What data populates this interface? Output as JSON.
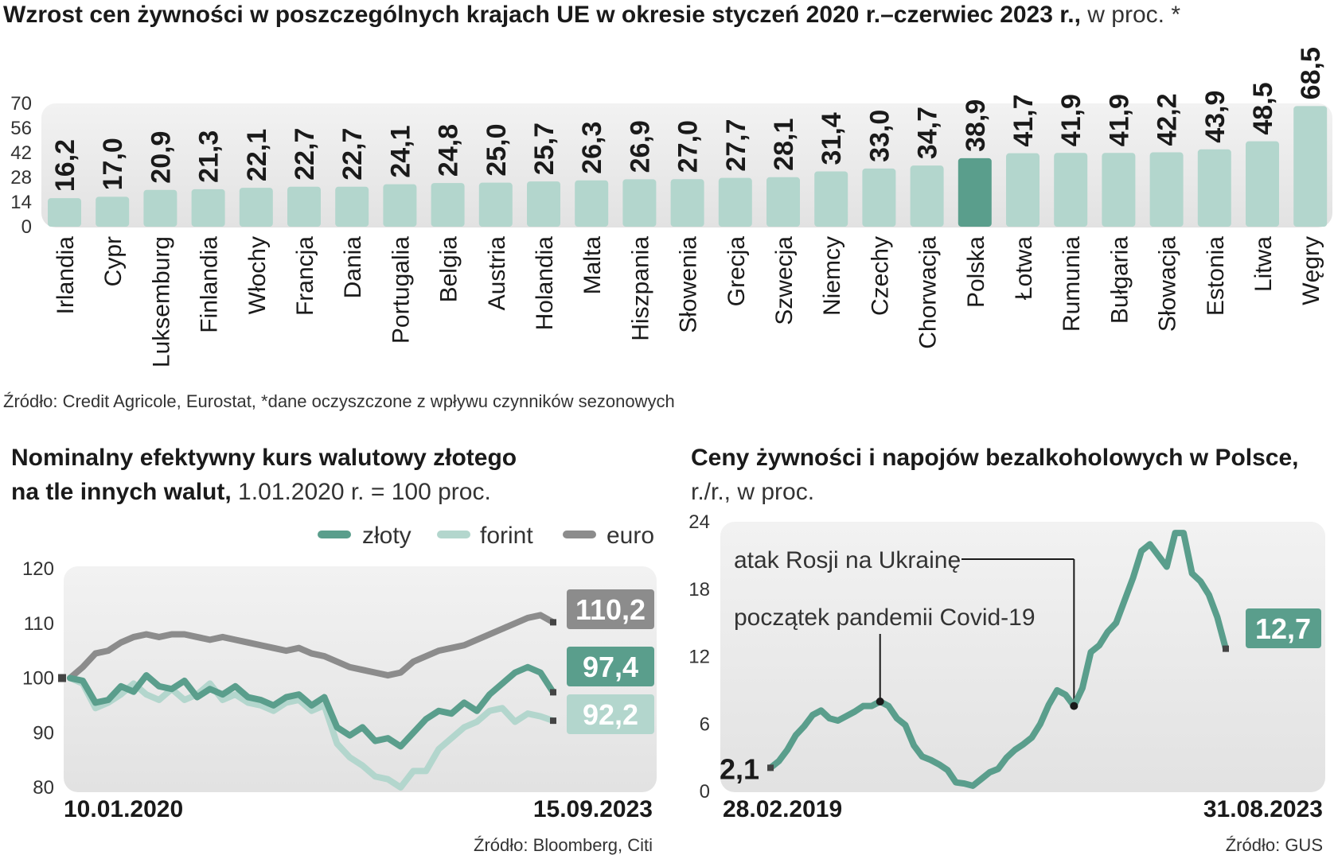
{
  "chart_data": [
    {
      "type": "bar",
      "title": "Wzrost cen żywności w poszczególnych krajach UE w okresie styczeń 2020 r.–czerwiec 2023 r.,",
      "subtitle": " w proc. *",
      "categories": [
        "Irlandia",
        "Cypr",
        "Luksemburg",
        "Finlandia",
        "Włochy",
        "Francja",
        "Dania",
        "Portugalia",
        "Belgia",
        "Austria",
        "Holandia",
        "Malta",
        "Hiszpania",
        "Słowenia",
        "Grecja",
        "Szwecja",
        "Niemcy",
        "Czechy",
        "Chorwacja",
        "Polska",
        "Łotwa",
        "Rumunia",
        "Bułgaria",
        "Słowacja",
        "Estonia",
        "Litwa",
        "Węgry"
      ],
      "values": [
        16.2,
        17.0,
        20.9,
        21.3,
        22.1,
        22.7,
        22.7,
        24.1,
        24.8,
        25.0,
        25.7,
        26.3,
        26.9,
        27.0,
        27.7,
        28.1,
        31.4,
        33.0,
        34.7,
        38.9,
        41.7,
        41.9,
        41.9,
        42.2,
        43.9,
        48.5,
        68.5
      ],
      "value_labels": [
        "16,2",
        "17,0",
        "20,9",
        "21,3",
        "22,1",
        "22,7",
        "22,7",
        "24,1",
        "24,8",
        "25,0",
        "25,7",
        "26,3",
        "26,9",
        "27,0",
        "27,7",
        "28,1",
        "31,4",
        "33,0",
        "34,7",
        "38,9",
        "41,7",
        "41,9",
        "41,9",
        "42,2",
        "43,9",
        "48,5",
        "68,5"
      ],
      "highlight": "Polska",
      "yticks": [
        "0",
        "14",
        "28",
        "42",
        "56",
        "70"
      ],
      "ylim": [
        0,
        70
      ],
      "source": "Źródło: Credit Agricole, Eurostat, *dane oczyszczone z wpływu czynników sezonowych",
      "colors": {
        "bar": "#b3d6cd",
        "highlight": "#5a9e8c"
      }
    },
    {
      "type": "line",
      "title_line1": "Nominalny efektywny kurs walutowy złotego",
      "title_line2": "na tle innych walut,",
      "subtitle": " 1.01.2020 r. = 100 proc.",
      "x_start_label": "10.01.2020",
      "x_end_label": "15.09.2023",
      "yticks": [
        "80",
        "90",
        "100",
        "110",
        "120"
      ],
      "ylim": [
        80,
        120
      ],
      "series": [
        {
          "name": "złoty",
          "color": "#5a9e8c",
          "end_label": "97,4",
          "values": [
            100,
            99.5,
            95.5,
            96,
            98.5,
            97.5,
            100.5,
            98.5,
            98,
            99.5,
            96.5,
            98,
            97,
            98.5,
            96.5,
            96,
            95,
            96.5,
            97,
            95,
            96.5,
            91,
            89.5,
            91,
            88.5,
            89,
            87.5,
            90,
            92.5,
            94,
            93.5,
            95.5,
            94,
            97,
            99,
            101,
            102,
            101,
            97.4
          ]
        },
        {
          "name": "forint",
          "color": "#b3d6cd",
          "end_label": "92,2",
          "values": [
            100,
            99,
            94.5,
            95.5,
            97,
            99,
            97,
            96,
            98,
            96,
            97,
            99,
            96,
            97,
            95.5,
            95,
            94,
            95.5,
            96,
            94,
            95,
            88,
            85.5,
            84,
            82,
            81.5,
            80,
            83,
            83,
            87,
            89,
            91,
            92,
            94,
            94.5,
            92,
            93.5,
            93,
            92.2
          ]
        },
        {
          "name": "euro",
          "color": "#8c8c8c",
          "end_label": "110,2",
          "values": [
            100,
            102,
            104.5,
            105,
            106.5,
            107.5,
            108,
            107.5,
            108,
            108,
            107.5,
            107,
            107.5,
            107,
            106.5,
            106,
            105.5,
            105,
            105.5,
            104.5,
            104,
            103,
            102,
            101.5,
            101,
            100.5,
            101,
            103,
            104,
            105,
            105.5,
            106,
            107,
            108,
            109,
            110,
            111,
            111.5,
            110.2
          ]
        }
      ],
      "source": "Źródło: Bloomberg, Citi"
    },
    {
      "type": "line",
      "title": "Ceny żywności i napojów bezalkoholowych w Polsce,",
      "subtitle": "r./r., w proc.",
      "x_start_label": "28.02.2019",
      "x_end_label": "31.08.2023",
      "yticks": [
        "0",
        "6",
        "12",
        "18",
        "24"
      ],
      "ylim": [
        0,
        24
      ],
      "series": [
        {
          "name": "",
          "color": "#5a9e8c",
          "values": [
            2.1,
            2.7,
            3.7,
            5.0,
            5.8,
            6.8,
            7.2,
            6.5,
            6.3,
            6.7,
            7.1,
            7.6,
            7.6,
            8.0,
            7.6,
            6.5,
            5.9,
            4.1,
            3.1,
            2.8,
            2.4,
            1.9,
            0.8,
            0.7,
            0.5,
            1.1,
            1.7,
            2.0,
            3.0,
            3.7,
            4.2,
            4.8,
            6.0,
            7.7,
            9.0,
            8.6,
            7.6,
            9.2,
            12.4,
            13.0,
            14.2,
            15.0,
            17.0,
            19.0,
            21.4,
            22.0,
            21.0,
            20.0,
            23.0,
            23.0,
            19.4,
            18.7,
            17.5,
            15.5,
            12.7
          ]
        }
      ],
      "start_label": "2,1",
      "end_label": "12,7",
      "annotations": [
        "atak Rosji na Ukrainę",
        "początek pandemii Covid-19"
      ],
      "source": "Źródło: GUS"
    }
  ]
}
